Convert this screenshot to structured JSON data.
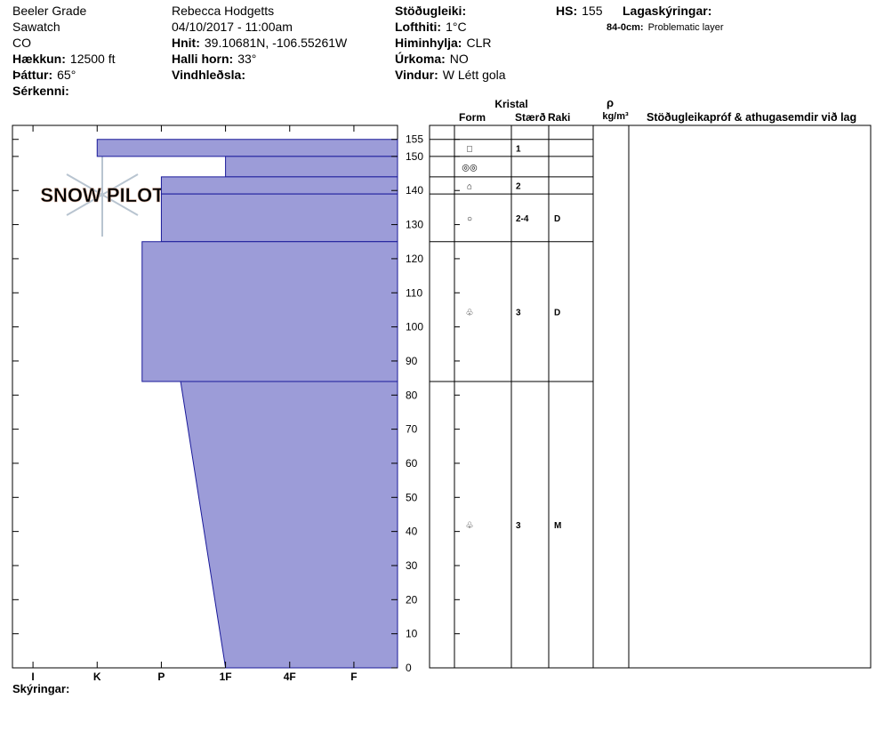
{
  "header": {
    "location": [
      "Beeler Grade",
      "Sawatch",
      "CO"
    ],
    "fields1": [
      {
        "label": "Hækkun:",
        "value": "12500 ft"
      },
      {
        "label": "Þáttur:",
        "value": "65°"
      },
      {
        "label": "Sérkenni:"
      }
    ],
    "observer": "Rebecca Hodgetts",
    "datetime": "04/10/2017 - 11:00am",
    "fields2": [
      {
        "label": "Hnit:",
        "value": "39.10681N, -106.55261W"
      },
      {
        "label": "Halli horn:",
        "value": "33°"
      },
      {
        "label": "Vindhleðsla:"
      }
    ],
    "fields3": [
      {
        "label": "Stöðugleiki:"
      },
      {
        "label": "Lofthiti:",
        "value": "1°C"
      },
      {
        "label": "Himinhylja:",
        "value": "CLR"
      },
      {
        "label": "Úrkoma:",
        "value": "NO"
      },
      {
        "label": "Vindur:",
        "value": "W Létt gola"
      }
    ],
    "hs": {
      "label": "HS:",
      "value": 155
    },
    "layer_notes": {
      "title": "Lagaskýringar:",
      "items": [
        {
          "label": "84-0cm:",
          "value": "Problematic layer"
        }
      ]
    }
  },
  "watermark": "SNOW PILOT",
  "chart_data": {
    "type": "snowprofile",
    "color": "#9c9cd8",
    "edge_color": "#1a1a9a",
    "ylim": [
      0,
      159.1
    ],
    "yticks": [
      0,
      10,
      20,
      30,
      40,
      50,
      60,
      70,
      80,
      90,
      100,
      110,
      120,
      130,
      140,
      150,
      155
    ],
    "xlim": [
      6.32,
      0.32
    ],
    "xticks": [
      {
        "value": 6,
        "label": "I"
      },
      {
        "value": 5,
        "label": "K"
      },
      {
        "value": 4,
        "label": "P"
      },
      {
        "value": 3,
        "label": "1F"
      },
      {
        "value": 2,
        "label": "4F"
      },
      {
        "value": 1,
        "label": "F"
      }
    ],
    "layers": [
      {
        "top": 155,
        "bottom": 150,
        "hardness": [
          5,
          5
        ],
        "form": "□",
        "size": "1"
      },
      {
        "top": 150,
        "bottom": 144,
        "hardness": [
          3,
          3
        ],
        "form": "◎◎"
      },
      {
        "top": 144,
        "bottom": 139,
        "hardness": [
          4,
          4
        ],
        "form": "⌂",
        "size": "2"
      },
      {
        "top": 139,
        "bottom": 125,
        "hardness": [
          4,
          4
        ],
        "form": "○",
        "size": "2-4",
        "moisture": "D"
      },
      {
        "top": 125,
        "bottom": 84,
        "hardness": [
          4.3,
          4.3
        ],
        "form": "♧",
        "size": "3",
        "moisture": "D"
      },
      {
        "top": 84,
        "bottom": 0,
        "hardness": [
          3.7,
          3
        ],
        "form": "♧",
        "size": "3",
        "moisture": "M"
      }
    ],
    "table_headers": {
      "crystal": "Kristal",
      "form": "Form",
      "size": "Stærð",
      "moisture": "Raki",
      "density_symbol": "ρ",
      "density_unit": "kg/m³",
      "comments": "Stöðugleikapróf & athugasemdir við lag"
    },
    "footer": "Skýringar:"
  }
}
